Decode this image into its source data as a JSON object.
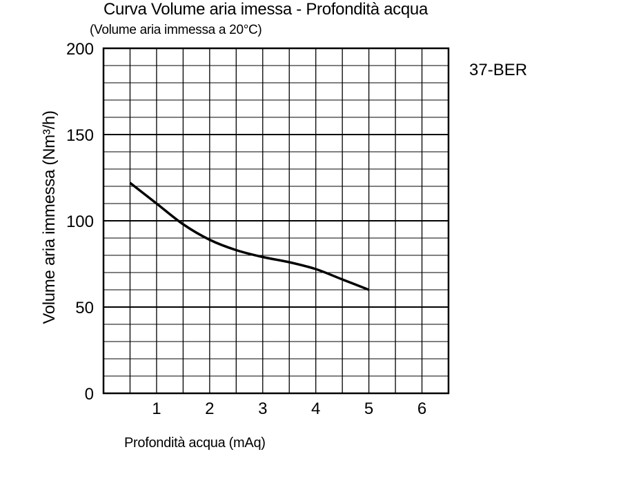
{
  "chart_data": {
    "type": "line",
    "title": "Curva Volume aria imessa - Profondità acqua",
    "subtitle": "(Volume aria immessa a 20°C)",
    "model_label": "37-BER",
    "xlabel": "Profondità acqua (mAq)",
    "ylabel": "Volume aria immessa (Nm³/h)",
    "xlim": [
      0,
      6.5
    ],
    "ylim": [
      0,
      200
    ],
    "x_ticks": [
      1,
      2,
      3,
      4,
      5,
      6
    ],
    "y_ticks": [
      0,
      50,
      100,
      150,
      200
    ],
    "grid": true,
    "series": [
      {
        "color": "#000000",
        "x": [
          0.5,
          1.0,
          1.5,
          2.0,
          2.5,
          3.0,
          3.5,
          4.0,
          4.5,
          5.0
        ],
        "y": [
          122,
          110,
          98,
          89,
          83,
          79,
          76,
          72,
          66,
          60
        ]
      }
    ]
  }
}
